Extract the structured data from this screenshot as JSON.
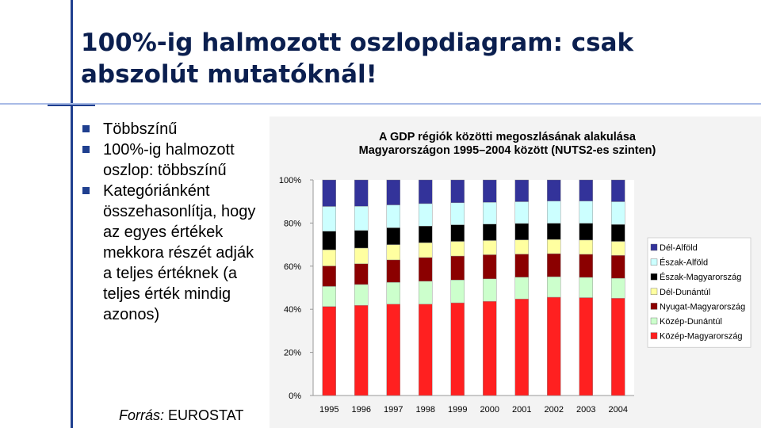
{
  "slide": {
    "title": "100%-ig halmozott oszlopdiagram: csak abszolút mutatóknál!",
    "bullets": [
      "Többszínű",
      "100%-ig halmozott oszlop: többszínű",
      "Kategóriánként összehasonlítja, hogy az egyes értékek mekkora részét adják a teljes értéknek (a teljes érték mindig azonos)"
    ],
    "source_label": "Forrás:",
    "source_value": "EUROSTAT"
  },
  "chart_data": {
    "type": "bar",
    "stacked": "percent",
    "title_line1": "A GDP régiók közötti megoszlásának alakulása",
    "title_line2": "Magyarországon 1995–2004 között (NUTS2-es szinten)",
    "categories": [
      "1995",
      "1996",
      "1997",
      "1998",
      "1999",
      "2000",
      "2001",
      "2002",
      "2003",
      "2004"
    ],
    "yticks": [
      "0%",
      "20%",
      "40%",
      "60%",
      "80%",
      "100%"
    ],
    "ylim": [
      0,
      100
    ],
    "legend_position": "right",
    "series": [
      {
        "name": "Közép-Magyarország",
        "color": "#ff2020",
        "values": [
          41.3,
          41.8,
          42.4,
          42.4,
          43.0,
          43.7,
          44.8,
          45.6,
          45.4,
          45.1
        ]
      },
      {
        "name": "Közép-Dunántúl",
        "color": "#ccffcc",
        "values": [
          9.3,
          9.7,
          10.1,
          10.6,
          10.6,
          10.4,
          10.1,
          9.5,
          9.4,
          9.3
        ]
      },
      {
        "name": "Nyugat-Magyarország",
        "color": "#8b0000",
        "values": [
          9.5,
          9.6,
          10.4,
          11.0,
          11.1,
          11.2,
          10.7,
          10.7,
          10.7,
          10.6
        ]
      },
      {
        "name": "Dél-Dunántúl",
        "color": "#ffffa0",
        "values": [
          7.5,
          7.3,
          7.1,
          6.9,
          6.8,
          6.6,
          6.6,
          6.6,
          6.6,
          6.5
        ]
      },
      {
        "name": "Észak-Magyarország",
        "color": "#000000",
        "values": [
          8.6,
          8.2,
          7.8,
          7.7,
          7.7,
          7.6,
          7.6,
          7.5,
          7.8,
          7.8
        ]
      },
      {
        "name": "Észak-Alföld",
        "color": "#ccffff",
        "values": [
          11.5,
          11.2,
          10.6,
          10.4,
          10.2,
          10.1,
          10.1,
          10.3,
          10.3,
          10.6
        ]
      },
      {
        "name": "Dél-Alföld",
        "color": "#33339a",
        "values": [
          12.3,
          12.2,
          11.6,
          11.0,
          10.6,
          10.4,
          10.1,
          9.8,
          9.8,
          10.1
        ]
      }
    ]
  }
}
